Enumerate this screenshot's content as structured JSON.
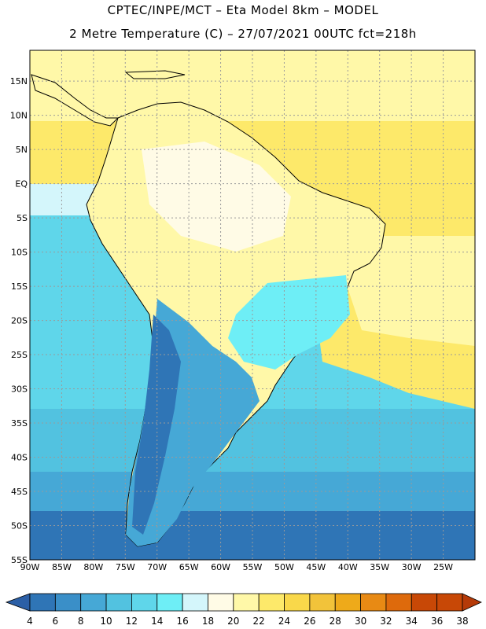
{
  "title_line1": "CPTEC/INPE/MCT –  Eta Model 8km – MODEL",
  "title_line2": "2 Metre Temperature (C) – 27/07/2021 00UTC fct=218h",
  "lat_labels": [
    "15N",
    "10N",
    "5N",
    "EQ",
    "5S",
    "10S",
    "15S",
    "20S",
    "25S",
    "30S",
    "35S",
    "40S",
    "45S",
    "50S",
    "55S"
  ],
  "lon_labels": [
    "90W",
    "85W",
    "80W",
    "75W",
    "70W",
    "65W",
    "60W",
    "55W",
    "50W",
    "45W",
    "40W",
    "35W",
    "30W",
    "25W"
  ],
  "colorbar": {
    "ticks": [
      "4",
      "6",
      "8",
      "10",
      "12",
      "14",
      "16",
      "18",
      "20",
      "22",
      "24",
      "26",
      "28",
      "30",
      "32",
      "34",
      "36",
      "38"
    ],
    "colors": [
      "#2b5fa6",
      "#2f75b6",
      "#3a8fc8",
      "#46a8d6",
      "#52c2e0",
      "#5fd6ea",
      "#6eeef6",
      "#d4f6fb",
      "#fffbe6",
      "#fff8a8",
      "#fde96a",
      "#f9d84a",
      "#f2c33a",
      "#eeaa1a",
      "#e88a14",
      "#de6a0c",
      "#c84806",
      "#b53a08"
    ]
  }
}
